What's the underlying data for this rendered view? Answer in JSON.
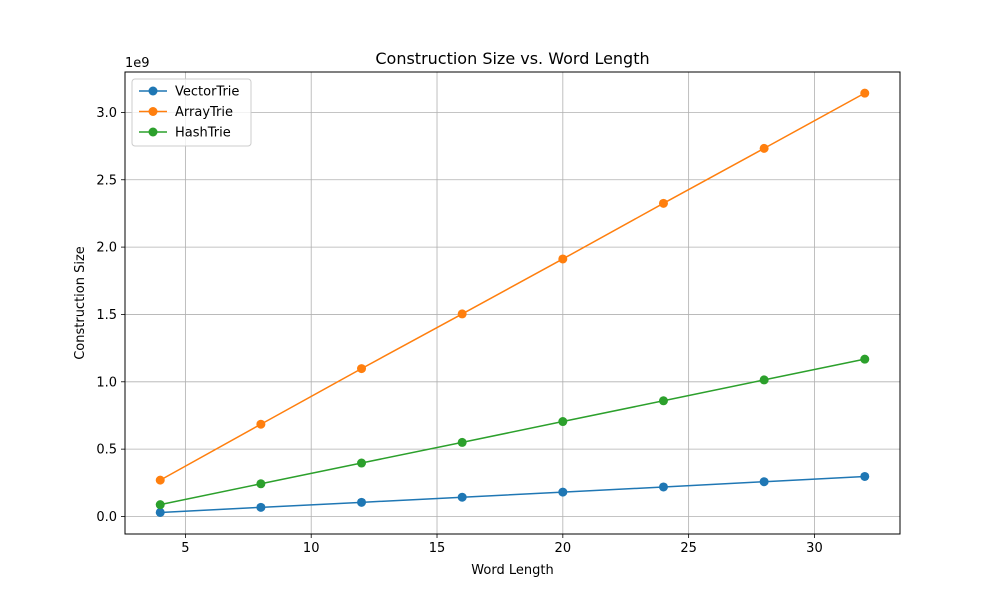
{
  "chart_data": {
    "type": "line",
    "title": "Construction Size vs. Word Length",
    "xlabel": "Word Length",
    "ylabel": "Construction Size",
    "y_offset_text": "1e9",
    "x": [
      4,
      8,
      12,
      16,
      20,
      24,
      28,
      32
    ],
    "xlim": [
      2.6,
      33.4
    ],
    "ylim": [
      -0.13,
      3.3
    ],
    "x_ticks": [
      5,
      10,
      15,
      20,
      25,
      30
    ],
    "x_tick_labels": [
      "5",
      "10",
      "15",
      "20",
      "25",
      "30"
    ],
    "y_ticks": [
      0.0,
      0.5,
      1.0,
      1.5,
      2.0,
      2.5,
      3.0
    ],
    "y_tick_labels": [
      "0.0",
      "0.5",
      "1.0",
      "1.5",
      "2.0",
      "2.5",
      "3.0"
    ],
    "grid": true,
    "legend_position": "upper-left",
    "series": [
      {
        "name": "VectorTrie",
        "color": "#1f77b4",
        "values": [
          0.03,
          0.068,
          0.105,
          0.143,
          0.181,
          0.219,
          0.258,
          0.297
        ]
      },
      {
        "name": "ArrayTrie",
        "color": "#ff7f0e",
        "values": [
          0.27,
          0.685,
          1.098,
          1.504,
          1.912,
          2.325,
          2.733,
          3.143
        ]
      },
      {
        "name": "HashTrie",
        "color": "#2ca02c",
        "values": [
          0.088,
          0.243,
          0.397,
          0.55,
          0.705,
          0.859,
          1.014,
          1.168
        ]
      }
    ]
  }
}
